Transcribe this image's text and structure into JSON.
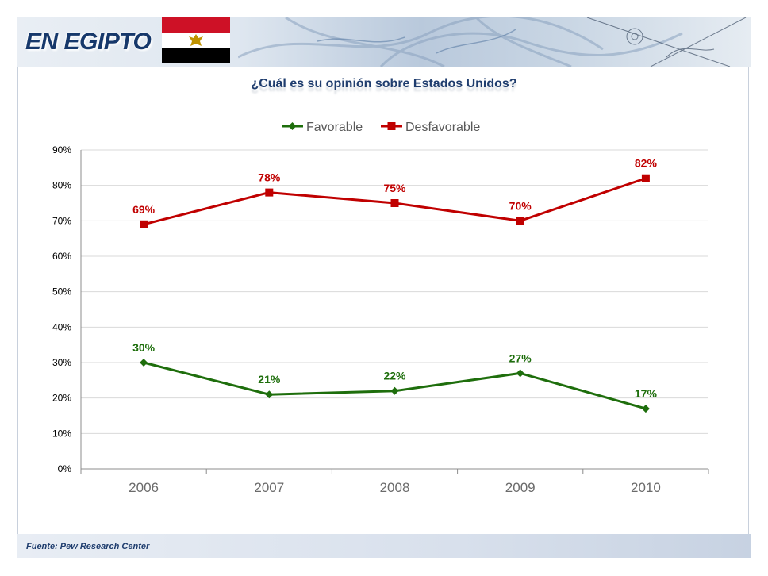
{
  "header": {
    "title": "EN EGIPTO"
  },
  "colors": {
    "favorable": "#1e6e0c",
    "unfavorable": "#c00000",
    "grid": "#d9d9d9",
    "axis_text": "#000000",
    "category_text": "#6b6b6b"
  },
  "chart_data": {
    "type": "line",
    "title": "¿Cuál es su opinión sobre Estados Unidos?",
    "xlabel": "",
    "ylabel": "",
    "categories": [
      "2006",
      "2007",
      "2008",
      "2009",
      "2010"
    ],
    "ylim": [
      0,
      90
    ],
    "yticks": [
      0,
      10,
      20,
      30,
      40,
      50,
      60,
      70,
      80,
      90
    ],
    "ytick_labels": [
      "0%",
      "10%",
      "20%",
      "30%",
      "40%",
      "50%",
      "60%",
      "70%",
      "80%",
      "90%"
    ],
    "grid": true,
    "legend_position": "top",
    "series": [
      {
        "name": "Favorable",
        "marker": "diamond",
        "values": [
          30,
          21,
          22,
          27,
          17
        ],
        "labels": [
          "30%",
          "21%",
          "22%",
          "27%",
          "17%"
        ]
      },
      {
        "name": "Desfavorable",
        "marker": "square",
        "values": [
          69,
          78,
          75,
          70,
          82
        ],
        "labels": [
          "69%",
          "78%",
          "75%",
          "70%",
          "82%"
        ]
      }
    ]
  },
  "footer": {
    "source": "Fuente: Pew Research Center"
  }
}
